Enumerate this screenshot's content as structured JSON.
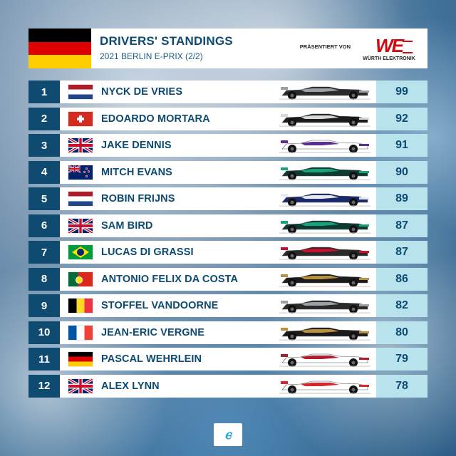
{
  "header": {
    "title": "DRIVERS' STANDINGS",
    "subtitle": "2021 BERLIN E-PRIX (2/2)",
    "sponsor_label": "PRÄSENTIERT VON",
    "sponsor_name": "WÜRTH ELEKTRONIK",
    "sponsor_mark": "WE",
    "flag": "germany-flag"
  },
  "colors": {
    "header_blue": "#0f4a70",
    "points_bg": "#b8e3ed",
    "name_text": "#0d4a72"
  },
  "standings": [
    {
      "pos": "1",
      "name": "NYCK DE VRIES",
      "flag": "nl",
      "points": "99",
      "car_color": "#2a2a2a",
      "car_accent": "#9aa0a6"
    },
    {
      "pos": "2",
      "name": "EDOARDO MORTARA",
      "flag": "ch",
      "points": "92",
      "car_color": "#1b1b1b",
      "car_accent": "#d8d8d8"
    },
    {
      "pos": "3",
      "name": "JAKE DENNIS",
      "flag": "gb",
      "points": "91",
      "car_color": "#ffffff",
      "car_accent": "#5b2d8e"
    },
    {
      "pos": "4",
      "name": "MITCH EVANS",
      "flag": "nz",
      "points": "90",
      "car_color": "#0b3b33",
      "car_accent": "#1aa37a"
    },
    {
      "pos": "5",
      "name": "ROBIN FRIJNS",
      "flag": "nl",
      "points": "89",
      "car_color": "#1a2a6b",
      "car_accent": "#e8e8ef"
    },
    {
      "pos": "6",
      "name": "SAM BIRD",
      "flag": "gb",
      "points": "87",
      "car_color": "#0b3b33",
      "car_accent": "#1aa37a"
    },
    {
      "pos": "7",
      "name": "LUCAS DI GRASSI",
      "flag": "br",
      "points": "87",
      "car_color": "#2a2a2a",
      "car_accent": "#c8102e"
    },
    {
      "pos": "8",
      "name": "ANTONIO FELIX DA COSTA",
      "flag": "pt",
      "points": "86",
      "car_color": "#1b1b1b",
      "car_accent": "#b8913f"
    },
    {
      "pos": "9",
      "name": "STOFFEL VANDOORNE",
      "flag": "be",
      "points": "82",
      "car_color": "#2a2a2a",
      "car_accent": "#9aa0a6"
    },
    {
      "pos": "10",
      "name": "JEAN-ERIC VERGNE",
      "flag": "fr",
      "points": "80",
      "car_color": "#1b1b1b",
      "car_accent": "#b8913f"
    },
    {
      "pos": "11",
      "name": "PASCAL WEHRLEIN",
      "flag": "de",
      "points": "79",
      "car_color": "#ffffff",
      "car_accent": "#b01c2e"
    },
    {
      "pos": "12",
      "name": "ALEX LYNN",
      "flag": "gb",
      "points": "78",
      "car_color": "#ffffff",
      "car_accent": "#d6262e"
    }
  ],
  "footer": {
    "logo_icon": "formula-e-logo-icon",
    "logo_glyph": "ⲉ"
  }
}
